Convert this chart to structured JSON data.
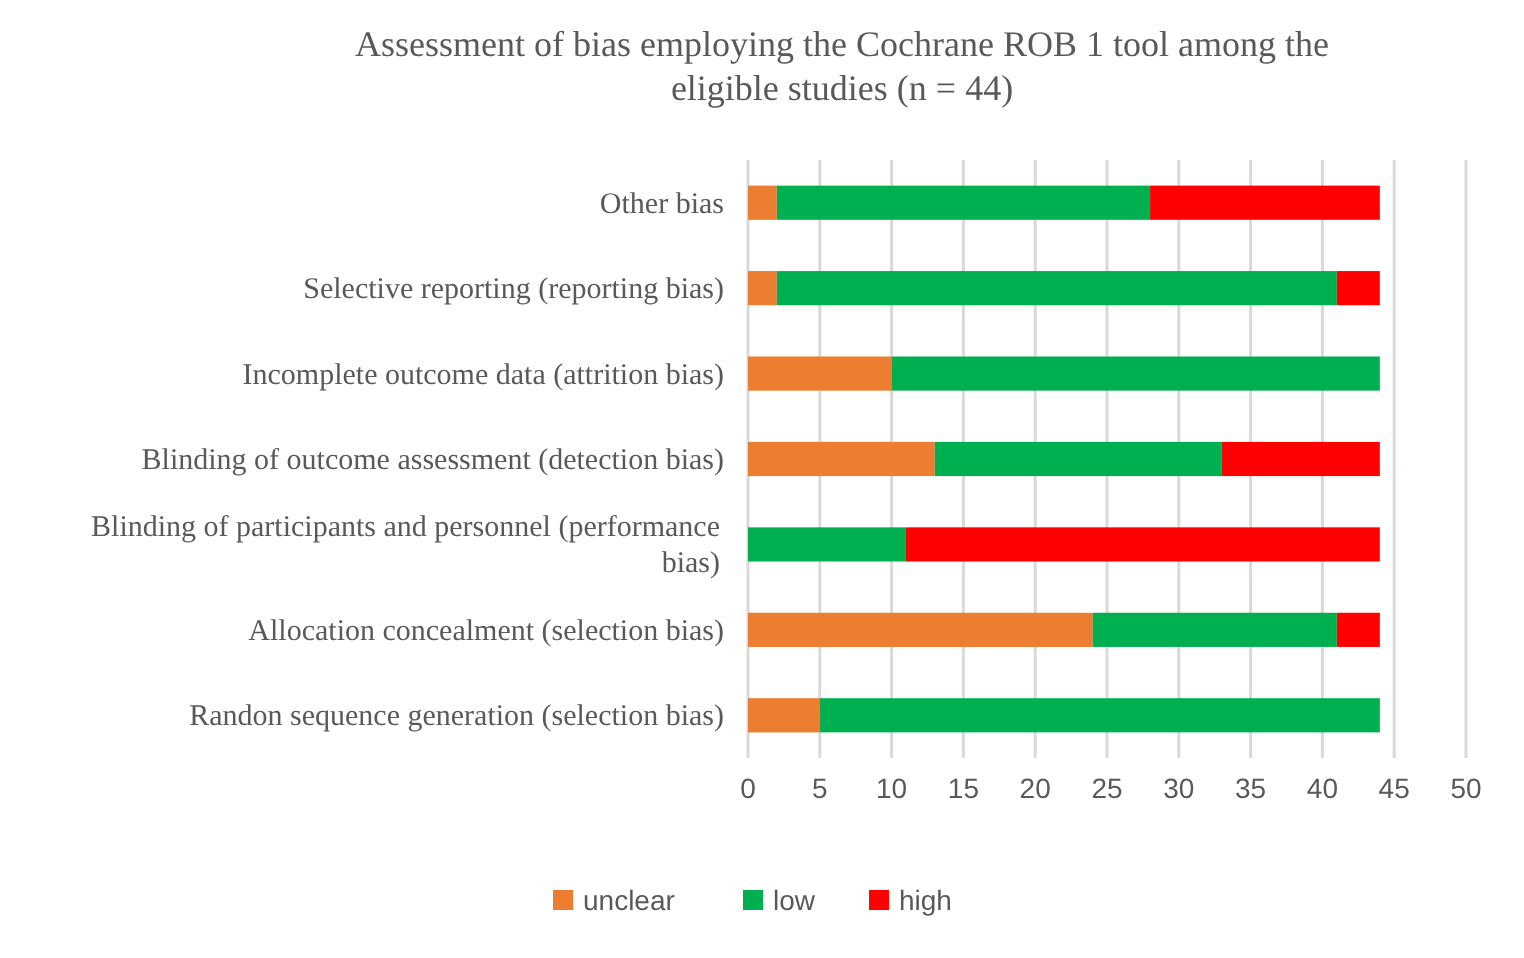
{
  "chart_data": {
    "type": "bar",
    "orientation": "horizontal",
    "stacked": true,
    "title": "Assessment of bias employing the Cochrane ROB 1 tool among the eligible studies (n = 44)",
    "categories": [
      "Other bias",
      "Selective reporting (reporting bias)",
      "Incomplete outcome data (attrition bias)",
      "Blinding of outcome assessment (detection bias)",
      "Blinding of participants and personnel (performance bias)",
      "Allocation concealment (selection bias)",
      "Randon sequence generation (selection bias)"
    ],
    "series": [
      {
        "name": "unclear",
        "color": "#ed7d31",
        "values": [
          2,
          2,
          10,
          13,
          0,
          24,
          5
        ]
      },
      {
        "name": "low",
        "color": "#00b050",
        "values": [
          26,
          39,
          34,
          20,
          11,
          17,
          39
        ]
      },
      {
        "name": "high",
        "color": "#ff0000",
        "values": [
          16,
          3,
          0,
          11,
          33,
          3,
          0
        ]
      }
    ],
    "xlim": [
      0,
      50
    ],
    "xticks": [
      0,
      5,
      10,
      15,
      20,
      25,
      30,
      35,
      40,
      45,
      50
    ],
    "grid": "x",
    "legend": "bottom"
  }
}
